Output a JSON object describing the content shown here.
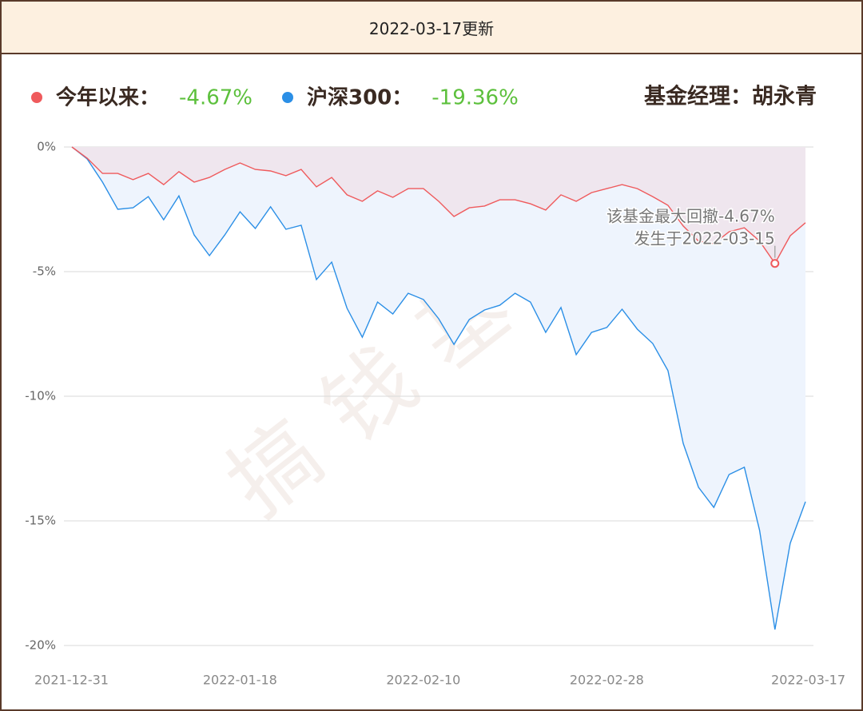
{
  "header": {
    "title": "2022-03-17更新"
  },
  "chart_data": {
    "type": "line",
    "manager": "基金经理：胡永青",
    "watermark": "搞钱基地",
    "annotations": [
      "该基金最大回撤-4.67%",
      "发生于2022-03-15"
    ],
    "categories": [
      "2021-12-31",
      null,
      null,
      null,
      null,
      null,
      null,
      null,
      null,
      null,
      null,
      "2022-01-18",
      null,
      null,
      null,
      null,
      null,
      null,
      null,
      null,
      null,
      null,
      null,
      "2022-02-10",
      null,
      null,
      null,
      null,
      null,
      null,
      null,
      null,
      null,
      null,
      null,
      "2022-02-28",
      null,
      null,
      null,
      null,
      null,
      null,
      null,
      null,
      null,
      null,
      null,
      null,
      "2022-03-17"
    ],
    "series": [
      {
        "name": "今年以来：",
        "legend_value": "-4.67%",
        "color": "#ef5a5c",
        "fill": "#efe6ee",
        "values": [
          0,
          -0.45,
          -1.06,
          -1.06,
          -1.31,
          -1.06,
          -1.51,
          -0.99,
          -1.41,
          -1.22,
          -0.9,
          -0.64,
          -0.9,
          -0.96,
          -1.15,
          -0.9,
          -1.6,
          -1.22,
          -1.92,
          -2.18,
          -1.76,
          -2.02,
          -1.67,
          -1.67,
          -2.18,
          -2.79,
          -2.44,
          -2.37,
          -2.12,
          -2.12,
          -2.28,
          -2.53,
          -1.92,
          -2.18,
          -1.83,
          -1.67,
          -1.51,
          -1.67,
          -1.99,
          -2.34,
          -3.17,
          -3.78,
          -3.88,
          -3.4,
          -3.24,
          -3.78,
          -4.67,
          -3.56,
          -3.04
        ]
      },
      {
        "name": "沪深300：",
        "legend_value": "-19.36%",
        "color": "#2b8fe6",
        "fill": "#eef4fd",
        "values": [
          0,
          -0.48,
          -1.41,
          -2.5,
          -2.44,
          -1.99,
          -2.92,
          -1.96,
          -3.53,
          -4.36,
          -3.53,
          -2.6,
          -3.27,
          -2.4,
          -3.3,
          -3.14,
          -5.32,
          -4.62,
          -6.47,
          -7.63,
          -6.22,
          -6.7,
          -5.87,
          -6.12,
          -6.89,
          -7.92,
          -6.92,
          -6.54,
          -6.35,
          -5.87,
          -6.22,
          -7.44,
          -6.44,
          -8.33,
          -7.44,
          -7.24,
          -6.51,
          -7.31,
          -7.88,
          -8.97,
          -11.89,
          -13.65,
          -14.46,
          -13.14,
          -12.85,
          -15.38,
          -19.36,
          -15.9,
          -14.23
        ]
      }
    ],
    "ylim": [
      -20,
      0
    ],
    "yticks": [
      {
        "value": 0,
        "label": "0%"
      },
      {
        "value": -5,
        "label": "-5%"
      },
      {
        "value": -10,
        "label": "-10%"
      },
      {
        "value": -15,
        "label": "-15%"
      },
      {
        "value": -20,
        "label": "-20%"
      }
    ],
    "grid": true
  }
}
